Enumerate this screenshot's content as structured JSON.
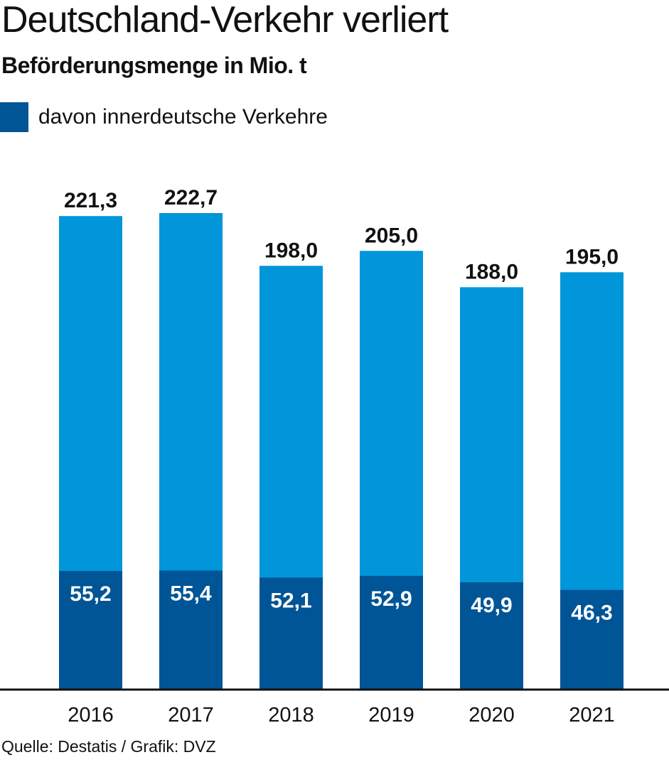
{
  "chart_data": {
    "type": "bar",
    "title": "Deutschland-Verkehr verliert",
    "subtitle": "Beförderungsmenge in Mio. t",
    "categories": [
      "2016",
      "2017",
      "2018",
      "2019",
      "2020",
      "2021"
    ],
    "series": [
      {
        "name": "",
        "values": [
          221.3,
          222.7,
          198.0,
          205.0,
          188.0,
          195.0
        ],
        "labels": [
          "221,3",
          "222,7",
          "198,0",
          "205,0",
          "188,0",
          "195,0"
        ],
        "color": "#0096d9"
      },
      {
        "name": "davon innerdeutsche Verkehre",
        "values": [
          55.2,
          55.4,
          52.1,
          52.9,
          49.9,
          46.3
        ],
        "labels": [
          "55,2",
          "55,4",
          "52,1",
          "52,9",
          "49,9",
          "46,3"
        ],
        "color": "#005596"
      }
    ],
    "xlabel": "",
    "ylabel": "",
    "ylim": [
      0,
      222.7
    ],
    "grid": false,
    "legend_position": "top-left",
    "source": "Quelle: Destatis / Grafik: DVZ"
  }
}
